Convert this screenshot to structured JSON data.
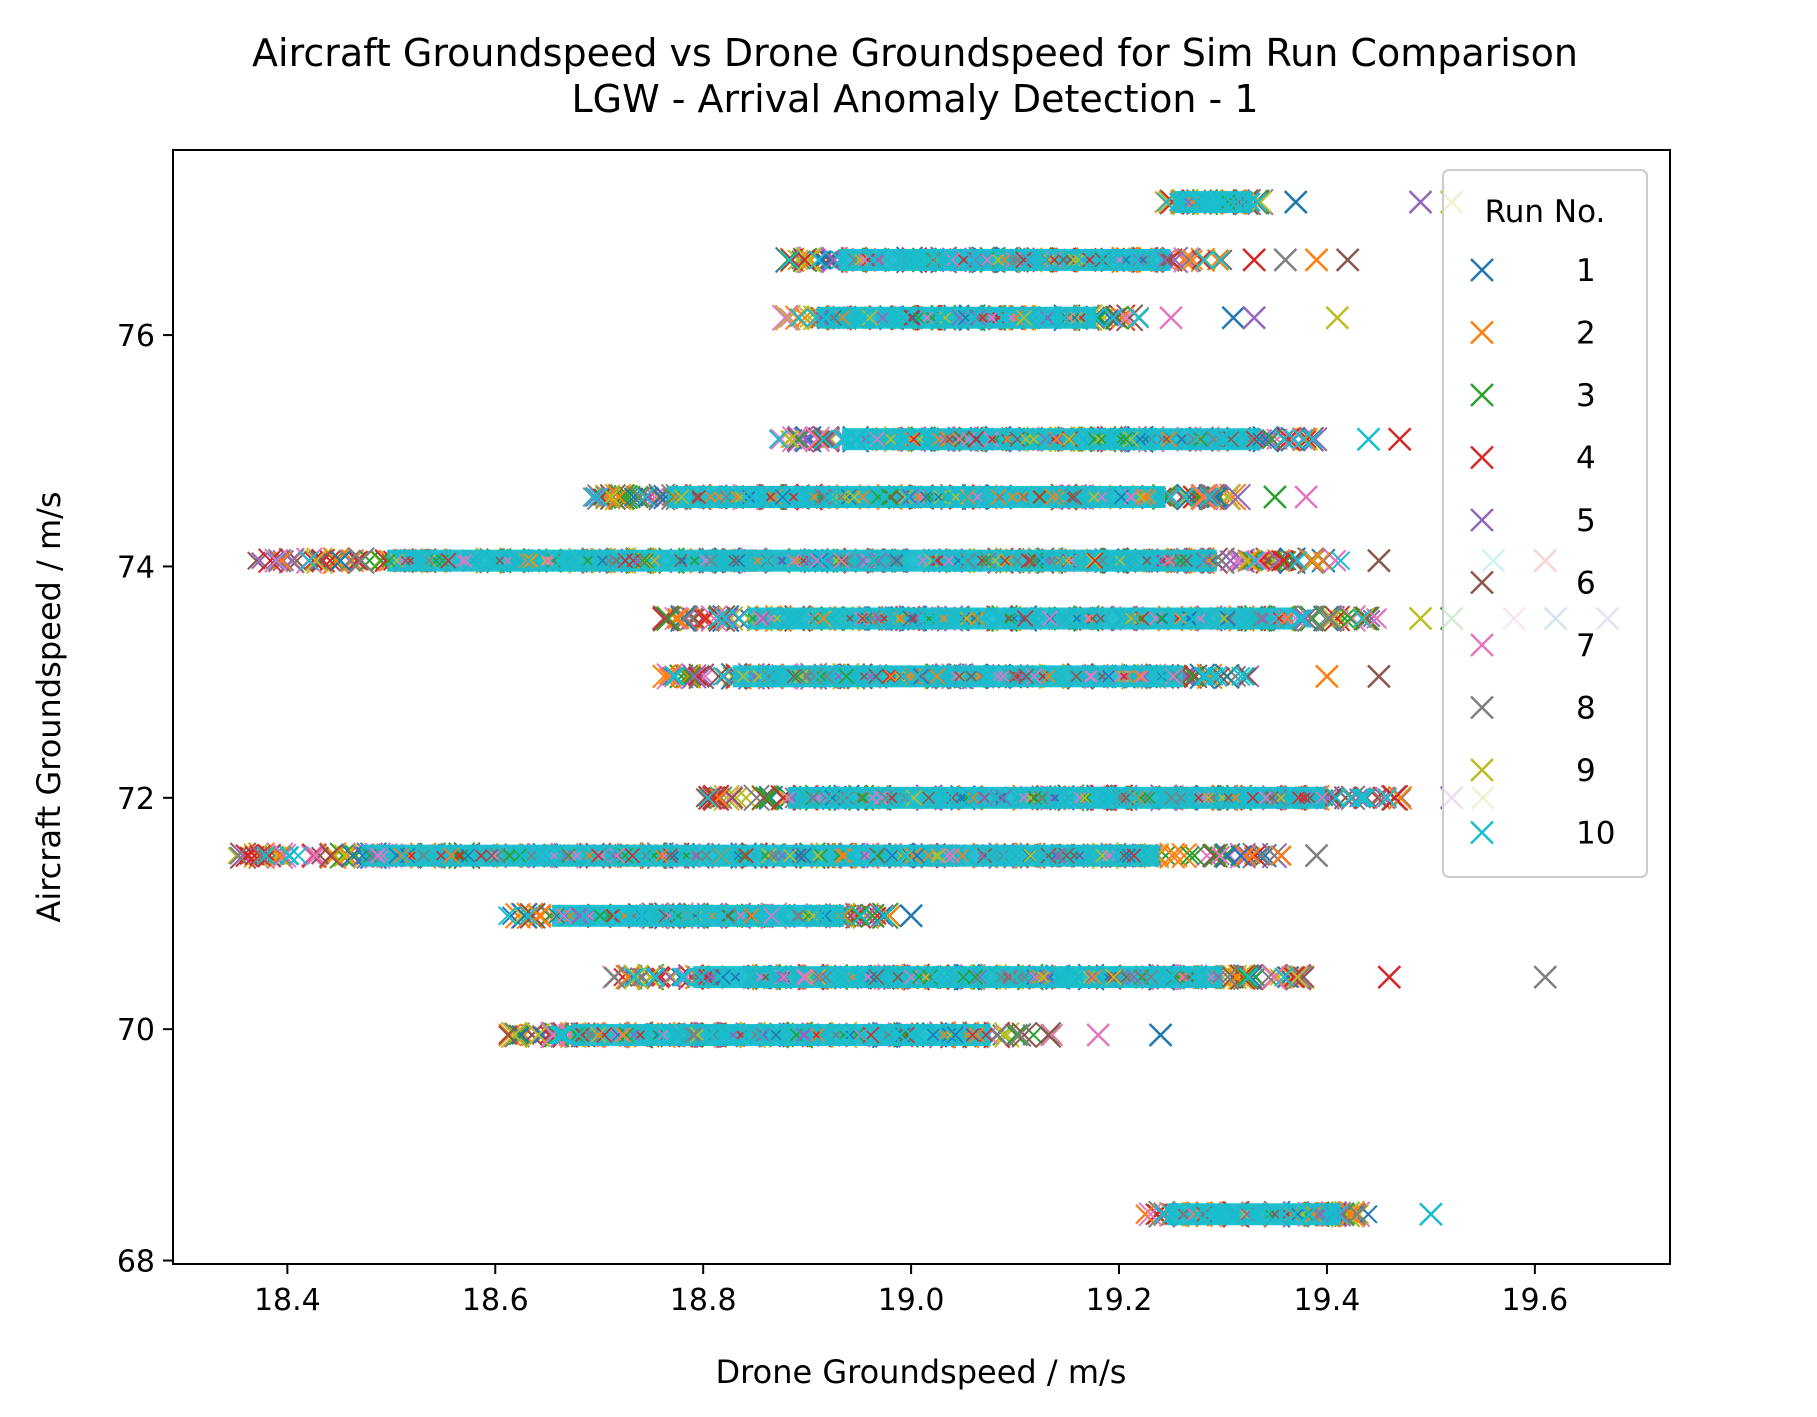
{
  "chart_data": {
    "type": "scatter",
    "title": "Aircraft Groundspeed vs Drone Groundspeed for Sim Run Comparison",
    "subtitle": "LGW - Arrival Anomaly Detection - 1",
    "xlabel": "Drone Groundspeed / m/s",
    "ylabel": "Aircraft Groundspeed / m/s",
    "xlim": [
      18.29,
      19.73
    ],
    "ylim": [
      67.97,
      77.6
    ],
    "xticks": [
      18.4,
      18.6,
      18.8,
      19.0,
      19.2,
      19.4,
      19.6
    ],
    "xtick_labels": [
      "18.4",
      "18.6",
      "18.8",
      "19.0",
      "19.2",
      "19.4",
      "19.6"
    ],
    "yticks": [
      68,
      70,
      72,
      74,
      76
    ],
    "ytick_labels": [
      "68",
      "70",
      "72",
      "74",
      "76"
    ],
    "marker": "x",
    "grid": false,
    "legend": {
      "title": "Run No.",
      "placement": "upper-right"
    },
    "series": [
      {
        "name": "1",
        "color": "#1f77b4"
      },
      {
        "name": "2",
        "color": "#ff7f0e"
      },
      {
        "name": "3",
        "color": "#2ca02c"
      },
      {
        "name": "4",
        "color": "#d62728"
      },
      {
        "name": "5",
        "color": "#9467bd"
      },
      {
        "name": "6",
        "color": "#8c564b"
      },
      {
        "name": "7",
        "color": "#e377c2"
      },
      {
        "name": "8",
        "color": "#7f7f7f"
      },
      {
        "name": "9",
        "color": "#bcbd22"
      },
      {
        "name": "10",
        "color": "#17becf"
      }
    ],
    "bands": [
      {
        "y": 77.15,
        "x_min": 19.24,
        "x_max": 19.34,
        "outliers": [
          19.37,
          19.49,
          19.52
        ]
      },
      {
        "y": 76.65,
        "x_min": 18.88,
        "x_max": 19.3,
        "outliers": [
          19.33,
          19.36,
          19.39,
          19.42
        ]
      },
      {
        "y": 76.15,
        "x_min": 18.87,
        "x_max": 19.22,
        "outliers": [
          19.25,
          19.31,
          19.33,
          19.41
        ]
      },
      {
        "y": 75.1,
        "x_min": 18.87,
        "x_max": 19.4,
        "outliers": [
          19.44,
          19.47
        ]
      },
      {
        "y": 74.6,
        "x_min": 18.69,
        "x_max": 19.32,
        "outliers": [
          19.35,
          19.38
        ]
      },
      {
        "y": 74.05,
        "x_min": 18.37,
        "x_max": 19.42,
        "outliers": [
          19.45,
          19.56,
          19.61
        ]
      },
      {
        "y": 73.55,
        "x_min": 18.76,
        "x_max": 19.45,
        "outliers": [
          19.49,
          19.52,
          19.58,
          19.62,
          19.67
        ]
      },
      {
        "y": 73.05,
        "x_min": 18.76,
        "x_max": 19.33,
        "outliers": [
          19.4,
          19.45
        ]
      },
      {
        "y": 72.0,
        "x_min": 18.8,
        "x_max": 19.48,
        "outliers": [
          19.52,
          19.55
        ]
      },
      {
        "y": 71.5,
        "x_min": 18.35,
        "x_max": 19.36,
        "outliers": [
          19.39
        ]
      },
      {
        "y": 70.98,
        "x_min": 18.61,
        "x_max": 18.98,
        "outliers": [
          19.0
        ]
      },
      {
        "y": 70.45,
        "x_min": 18.71,
        "x_max": 19.38,
        "outliers": [
          19.46,
          19.61
        ]
      },
      {
        "y": 69.95,
        "x_min": 18.61,
        "x_max": 19.14,
        "outliers": [
          19.18,
          19.24
        ]
      },
      {
        "y": 68.4,
        "x_min": 19.22,
        "x_max": 19.44,
        "outliers": [
          19.5
        ]
      }
    ]
  }
}
